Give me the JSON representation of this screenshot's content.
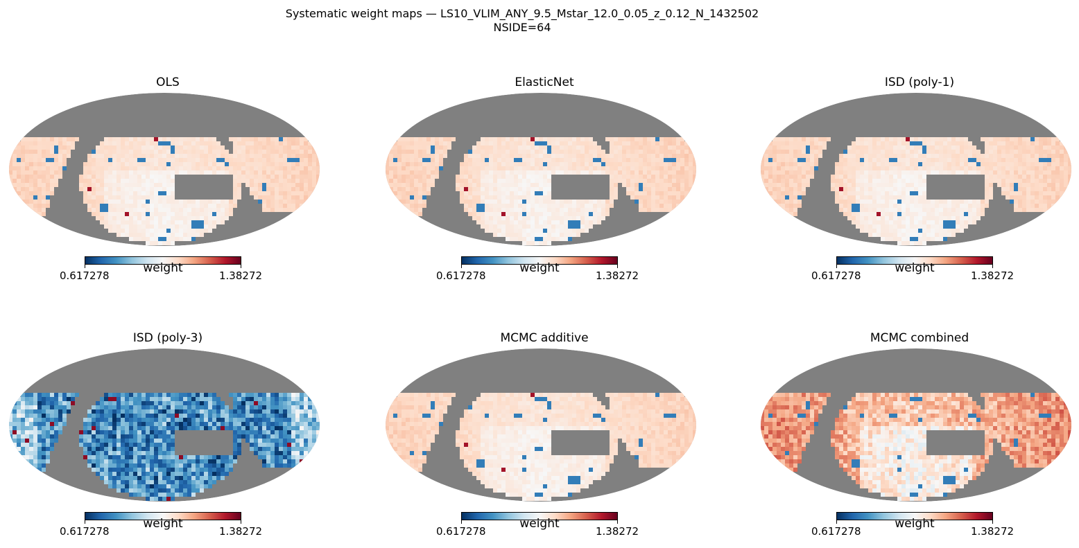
{
  "chart_data": {
    "type": "heatmap",
    "projection": "mollweide",
    "title": "Systematic weight maps — LS10_VLIM_ANY_9.5_Mstar_12.0_0.05_z_0.12_N_1432502",
    "subtitle": "NSIDE=64",
    "layout": {
      "rows": 2,
      "cols": 3
    },
    "colormap": "RdBu_r",
    "mask_color": "#808080",
    "colorbar": {
      "label": "weight",
      "min": 0.617278,
      "max": 1.38272,
      "min_label": "0.617278",
      "max_label": "1.38272"
    },
    "panels": [
      {
        "title": "OLS",
        "pattern": "mild"
      },
      {
        "title": "ElasticNet",
        "pattern": "mild"
      },
      {
        "title": "ISD (poly-1)",
        "pattern": "mild"
      },
      {
        "title": "ISD (poly-3)",
        "pattern": "strong-low"
      },
      {
        "title": "MCMC additive",
        "pattern": "mild"
      },
      {
        "title": "MCMC combined",
        "pattern": "strong-high"
      }
    ]
  }
}
